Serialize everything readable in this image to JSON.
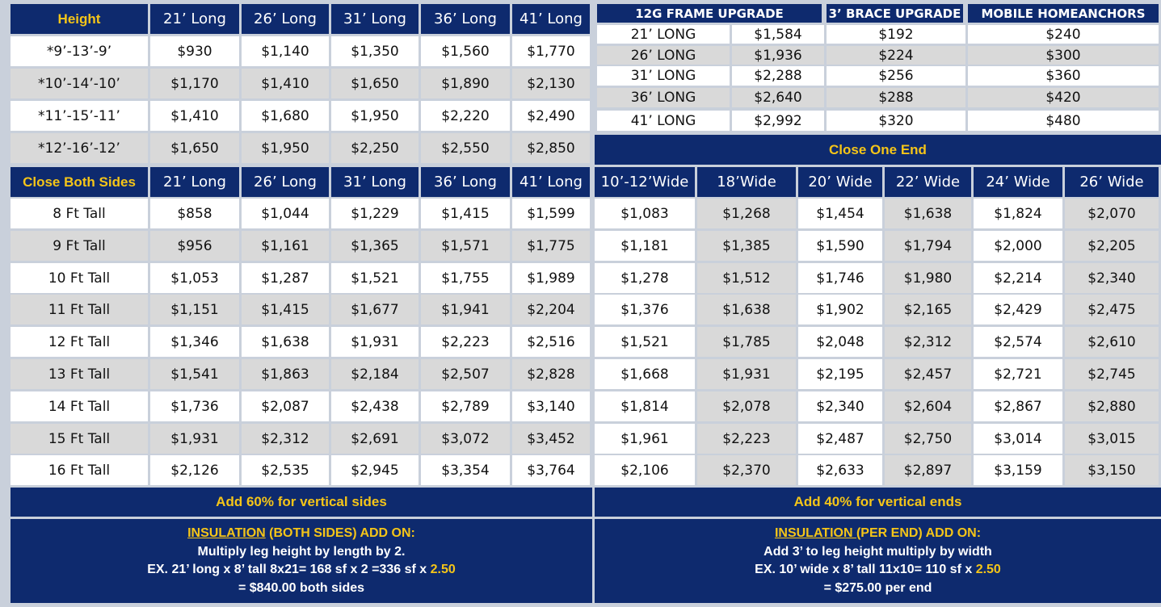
{
  "top_left": {
    "headers": [
      "Height",
      "21’ Long",
      "26’ Long",
      "31’ Long",
      "36’ Long",
      "41’ Long"
    ],
    "rows": [
      [
        "*9’-13’-9’",
        "$930",
        "$1,140",
        "$1,350",
        "$1,560",
        "$1,770"
      ],
      [
        "*10’-14’-10’",
        "$1,170",
        "$1,410",
        "$1,650",
        "$1,890",
        "$2,130"
      ],
      [
        "*11’-15’-11’",
        "$1,410",
        "$1,680",
        "$1,950",
        "$2,220",
        "$2,490"
      ],
      [
        "*12’-16’-12’",
        "$1,650",
        "$1,950",
        "$2,250",
        "$2,550",
        "$2,850"
      ]
    ]
  },
  "top_right": {
    "headers": [
      "12G FRAME UPGRADE",
      "3’ BRACE UPGRADE",
      "MOBILE HOMEANCHORS"
    ],
    "rows": [
      [
        "21’ LONG",
        "$1,584",
        "$192",
        "$240"
      ],
      [
        "26’ LONG",
        "$1,936",
        "$224",
        "$300"
      ],
      [
        "31’ LONG",
        "$2,288",
        "$256",
        "$360"
      ],
      [
        "36’ LONG",
        "$2,640",
        "$288",
        "$420"
      ],
      [
        "41’ LONG",
        "$2,992",
        "$320",
        "$480"
      ]
    ]
  },
  "close_one_end_title": "Close One End",
  "sides": {
    "headers": [
      "Close Both Sides",
      "21’ Long",
      "26’ Long",
      "31’ Long",
      "36’ Long",
      "41’ Long"
    ],
    "rows": [
      [
        "8 Ft Tall",
        "$858",
        "$1,044",
        "$1,229",
        "$1,415",
        "$1,599"
      ],
      [
        "9 Ft Tall",
        "$956",
        "$1,161",
        "$1,365",
        "$1,571",
        "$1,775"
      ],
      [
        "10 Ft Tall",
        "$1,053",
        "$1,287",
        "$1,521",
        "$1,755",
        "$1,989"
      ],
      [
        "11 Ft Tall",
        "$1,151",
        "$1,415",
        "$1,677",
        "$1,941",
        "$2,204"
      ],
      [
        "12 Ft Tall",
        "$1,346",
        "$1,638",
        "$1,931",
        "$2,223",
        "$2,516"
      ],
      [
        "13 Ft Tall",
        "$1,541",
        "$1,863",
        "$2,184",
        "$2,507",
        "$2,828"
      ],
      [
        "14 Ft Tall",
        "$1,736",
        "$2,087",
        "$2,438",
        "$2,789",
        "$3,140"
      ],
      [
        "15 Ft Tall",
        "$1,931",
        "$2,312",
        "$2,691",
        "$3,072",
        "$3,452"
      ],
      [
        "16 Ft Tall",
        "$2,126",
        "$2,535",
        "$2,945",
        "$3,354",
        "$3,764"
      ]
    ]
  },
  "ends": {
    "headers": [
      "10’-12’Wide",
      "18’Wide",
      "20’ Wide",
      "22’ Wide",
      "24’ Wide",
      "26’ Wide"
    ],
    "rows": [
      [
        "$1,083",
        "$1,268",
        "$1,454",
        "$1,638",
        "$1,824",
        "$2,070"
      ],
      [
        "$1,181",
        "$1,385",
        "$1,590",
        "$1,794",
        "$2,000",
        "$2,205"
      ],
      [
        "$1,278",
        "$1,512",
        "$1,746",
        "$1,980",
        "$2,214",
        "$2,340"
      ],
      [
        "$1,376",
        "$1,638",
        "$1,902",
        "$2,165",
        "$2,429",
        "$2,475"
      ],
      [
        "$1,521",
        "$1,785",
        "$2,048",
        "$2,312",
        "$2,574",
        "$2,610"
      ],
      [
        "$1,668",
        "$1,931",
        "$2,195",
        "$2,457",
        "$2,721",
        "$2,745"
      ],
      [
        "$1,814",
        "$2,078",
        "$2,340",
        "$2,604",
        "$2,867",
        "$2,880"
      ],
      [
        "$1,961",
        "$2,223",
        "$2,487",
        "$2,750",
        "$3,014",
        "$3,015"
      ],
      [
        "$2,106",
        "$2,370",
        "$2,633",
        "$2,897",
        "$3,159",
        "$3,150"
      ]
    ]
  },
  "vertical_sides_note": "Add 60% for vertical sides",
  "vertical_ends_note": "Add 40% for vertical ends",
  "insulation_sides": {
    "title_u": "INSULATION",
    "title_rest": " (BOTH SIDES) ADD ON:",
    "line1": "Multiply leg height by length by 2.",
    "line2_pre": "EX. 21’ long x 8’ tall 8x21= 168 sf x 2 =336 sf x ",
    "line2_rate": "2.50",
    "line3": "= $840.00 both sides"
  },
  "insulation_ends": {
    "title_u": "INSULATION ",
    "title_rest": "(PER END) ADD ON:",
    "line1": "Add 3’ to leg height multiply by width",
    "line2_pre": "EX. 10’ wide x 8’ tall 11x10= 110 sf x ",
    "line2_rate": "2.50",
    "line3": "= $275.00 per end"
  },
  "colors": {
    "navy": "#0e2a6e",
    "gold": "#f5c518",
    "light_gray": "#d9d9d9"
  }
}
